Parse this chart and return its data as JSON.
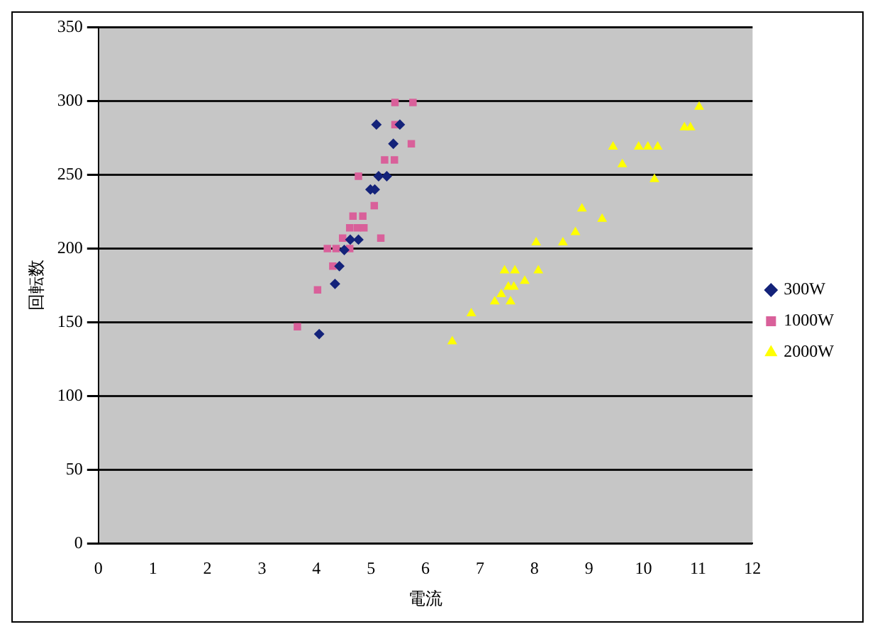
{
  "chart_data": {
    "type": "scatter",
    "xlabel": "電流",
    "ylabel": "回転数",
    "xlim": [
      0,
      12
    ],
    "xticks": [
      0,
      1,
      2,
      3,
      4,
      5,
      6,
      7,
      8,
      9,
      10,
      11,
      12
    ],
    "ylim": [
      0,
      350
    ],
    "yticks": [
      0,
      50,
      100,
      150,
      200,
      250,
      300,
      350
    ],
    "grid": "y",
    "legend": "right",
    "series": [
      {
        "name": "300W",
        "color": "#14237a",
        "marker": "diamond",
        "x": [
          5.1,
          5.53,
          5.41,
          5.14,
          5.29,
          4.99,
          5.07,
          4.77,
          4.62,
          4.51,
          4.42,
          4.34,
          4.05
        ],
        "values": [
          284,
          284,
          271,
          249,
          249,
          240,
          240,
          206,
          206,
          199,
          188,
          176,
          142
        ]
      },
      {
        "name": "1000W",
        "color": "#d9609a",
        "marker": "square",
        "x": [
          5.44,
          5.77,
          5.44,
          5.74,
          5.25,
          5.43,
          4.77,
          5.06,
          4.67,
          4.85,
          4.61,
          4.75,
          4.87,
          4.48,
          5.18,
          4.2,
          4.36,
          4.61,
          4.3,
          4.02,
          3.65
        ],
        "values": [
          299,
          299,
          284,
          271,
          260,
          260,
          249,
          229,
          222,
          222,
          214,
          214,
          214,
          207,
          207,
          200,
          200,
          200,
          188,
          172,
          147
        ]
      },
      {
        "name": "2000W",
        "color": "#ffff00",
        "marker": "triangle",
        "x": [
          6.49,
          6.84,
          7.27,
          7.39,
          7.56,
          7.52,
          7.62,
          7.45,
          7.64,
          7.82,
          8.07,
          8.03,
          8.52,
          8.75,
          8.87,
          9.24,
          9.44,
          9.61,
          9.91,
          10.08,
          10.26,
          10.2,
          10.75,
          10.86,
          11.02
        ],
        "values": [
          137,
          156,
          164,
          169,
          164,
          174,
          174,
          185,
          185,
          178,
          185,
          204,
          204,
          211,
          227,
          220,
          269,
          257,
          269,
          269,
          269,
          247,
          282,
          282,
          296
        ]
      }
    ]
  }
}
